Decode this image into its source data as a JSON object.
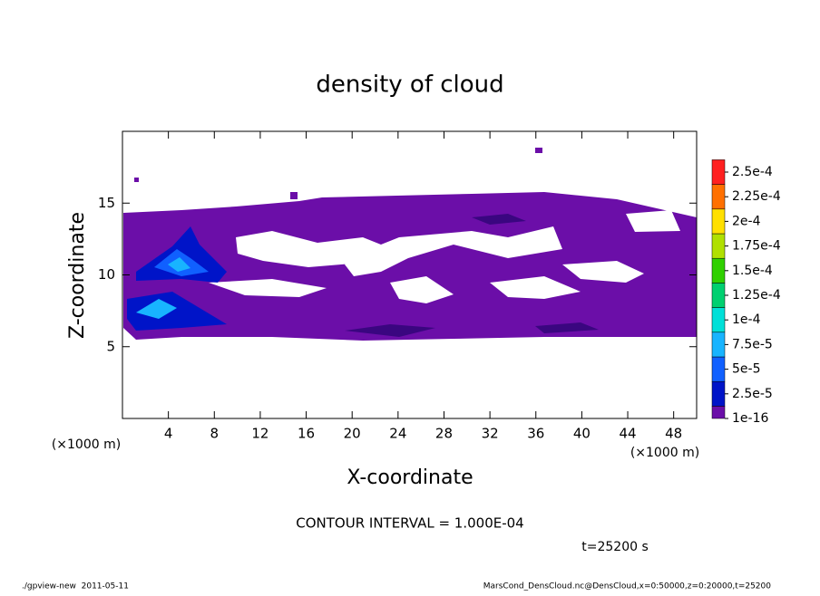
{
  "chart_data": {
    "type": "contour",
    "title": "density of cloud",
    "x_label": "X-coordinate",
    "y_label": "Z-coordinate",
    "x_unit_left": "(×1000 m)",
    "x_unit_right": "(×1000 m)",
    "xlim": [
      0,
      50
    ],
    "xticks": [
      4,
      8,
      12,
      16,
      20,
      24,
      28,
      32,
      36,
      40,
      44,
      48
    ],
    "ylim": [
      0,
      20
    ],
    "yticks": [
      5,
      10,
      15
    ],
    "colorbar": {
      "levels": [
        {
          "value": 1e-16,
          "label": "1e-16"
        },
        {
          "value": 2.5e-05,
          "label": "2.5e-5"
        },
        {
          "value": 5e-05,
          "label": "5e-5"
        },
        {
          "value": 7.5e-05,
          "label": "7.5e-5"
        },
        {
          "value": 0.0001,
          "label": "1e-4"
        },
        {
          "value": 0.000125,
          "label": "1.25e-4"
        },
        {
          "value": 0.00015,
          "label": "1.5e-4"
        },
        {
          "value": 0.000175,
          "label": "1.75e-4"
        },
        {
          "value": 0.0002,
          "label": "2e-4"
        },
        {
          "value": 0.000225,
          "label": "2.25e-4"
        },
        {
          "value": 0.00025,
          "label": "2.5e-4"
        }
      ],
      "colors": [
        "#6b0ea8",
        "#0014c8",
        "#1060ff",
        "#18b4ff",
        "#00e0d8",
        "#00d070",
        "#30d000",
        "#b0e000",
        "#ffe000",
        "#ff7000",
        "#ff2020",
        "#ff9898"
      ]
    },
    "contour_interval": "CONTOUR INTERVAL = 1.000E-04",
    "time_label": "t=25200 s",
    "footer_left": "./gpview-new  2011-05-11",
    "footer_right": "MarsCond_DensCloud.nc@DensCloud,x=0:50000,z=0:20000,t=25200"
  }
}
